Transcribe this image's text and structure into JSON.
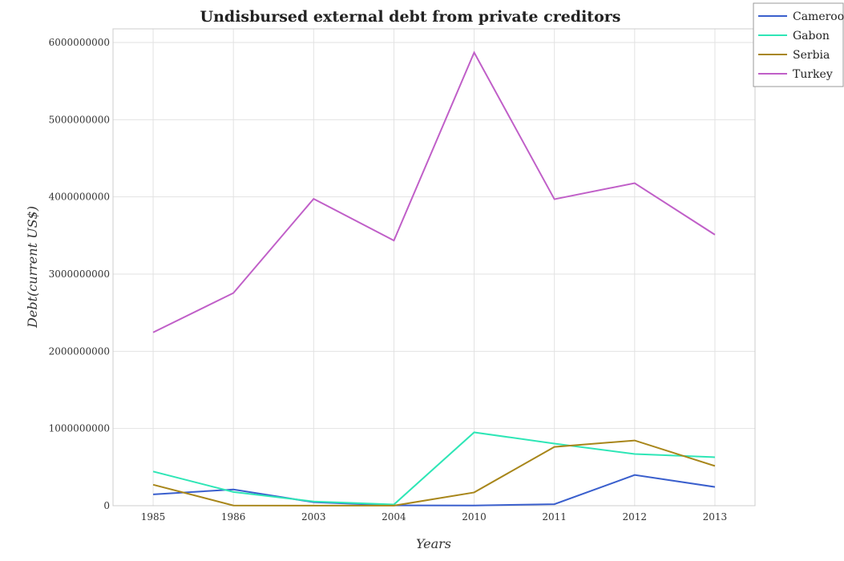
{
  "chart_data": {
    "type": "line",
    "title": "Undisbursed external debt from private creditors",
    "xlabel": "Years",
    "ylabel": "Debt(current US$)",
    "categories": [
      "1985",
      "1986",
      "2003",
      "2004",
      "2010",
      "2011",
      "2012",
      "2013"
    ],
    "y_ticks": [
      "0",
      "1000000000",
      "2000000000",
      "3000000000",
      "4000000000",
      "5000000000",
      "6000000000"
    ],
    "ylim": [
      0,
      6000000000
    ],
    "grid": true,
    "legend_position": "top-right",
    "series": [
      {
        "name": "Cameroon",
        "color": "#3a5fcd",
        "values": [
          147000000,
          210000000,
          45000000,
          4000000,
          2000000,
          20000000,
          398000000,
          243000000
        ]
      },
      {
        "name": "Gabon",
        "color": "#2ee6b6",
        "values": [
          443000000,
          178000000,
          55000000,
          15000000,
          950000000,
          805000000,
          670000000,
          628000000
        ]
      },
      {
        "name": "Serbia",
        "color": "#a8861a",
        "values": [
          272000000,
          3000000,
          1000000,
          1000000,
          172000000,
          762000000,
          845000000,
          515000000
        ]
      },
      {
        "name": "Turkey",
        "color": "#c05fc8",
        "values": [
          2245000000,
          2755000000,
          3975000000,
          3435000000,
          5870000000,
          3970000000,
          4178000000,
          3510000000
        ]
      }
    ]
  }
}
